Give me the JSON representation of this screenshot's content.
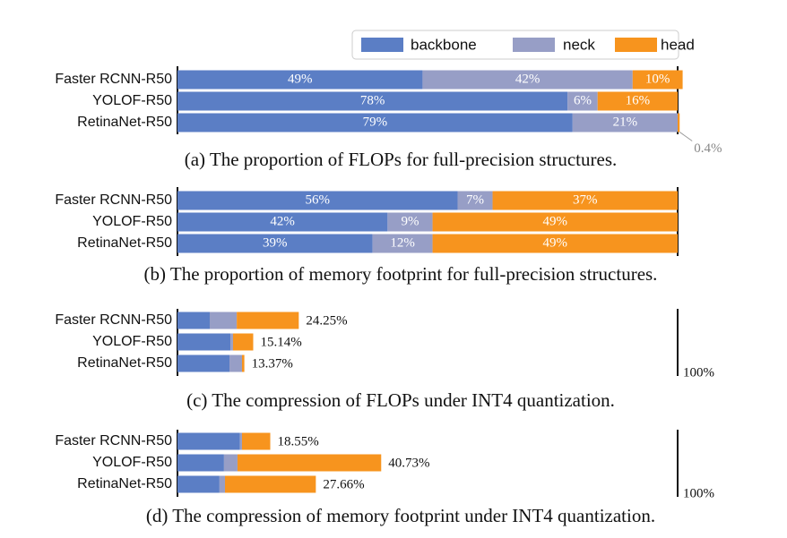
{
  "chart_data": [
    {
      "type": "bar",
      "orientation": "horizontal",
      "stacked": true,
      "caption": "(a) The proportion of FLOPs for full-precision structures.",
      "categories": [
        "Faster RCNN-R50",
        "YOLOF-R50",
        "RetinaNet-R50"
      ],
      "xlim": [
        0,
        100
      ],
      "series": [
        {
          "name": "backbone",
          "color": "#5b7ec5",
          "values": [
            49,
            78,
            79
          ],
          "value_labels": [
            "49%",
            "78%",
            "79%"
          ]
        },
        {
          "name": "neck",
          "color": "#979ec6",
          "values": [
            42,
            6,
            21
          ],
          "value_labels": [
            "42%",
            "6%",
            "21%"
          ]
        },
        {
          "name": "head",
          "color": "#f7941e",
          "values": [
            10,
            16,
            0.4
          ],
          "value_labels": [
            "10%",
            "16%",
            "0.4%"
          ]
        }
      ]
    },
    {
      "type": "bar",
      "orientation": "horizontal",
      "stacked": true,
      "caption": "(b) The proportion of memory footprint for full-precision structures.",
      "categories": [
        "Faster RCNN-R50",
        "YOLOF-R50",
        "RetinaNet-R50"
      ],
      "xlim": [
        0,
        100
      ],
      "series": [
        {
          "color": "#5b7ec5",
          "values": [
            56,
            42,
            39
          ],
          "value_labels": [
            "56%",
            "42%",
            "39%"
          ]
        },
        {
          "color": "#979ec6",
          "values": [
            7,
            9,
            12
          ],
          "value_labels": [
            "7%",
            "9%",
            "12%"
          ]
        },
        {
          "color": "#f7941e",
          "values": [
            37,
            49,
            49
          ],
          "value_labels": [
            "37%",
            "49%",
            "49%"
          ]
        }
      ]
    },
    {
      "type": "bar",
      "orientation": "horizontal",
      "stacked": true,
      "caption": "(c) The compression of FLOPs under INT4 quantization.",
      "categories": [
        "Faster RCNN-R50",
        "YOLOF-R50",
        "RetinaNet-R50"
      ],
      "xlim": [
        0,
        100
      ],
      "series": [
        {
          "color": "#5b7ec5",
          "values": [
            6.45,
            10.6,
            10.4
          ]
        },
        {
          "color": "#979ec6",
          "values": [
            5.4,
            0.5,
            2.5
          ]
        },
        {
          "color": "#f7941e",
          "values": [
            12.4,
            4.04,
            0.47
          ]
        }
      ],
      "totals": [
        24.25,
        15.14,
        13.37
      ],
      "total_labels": [
        "24.25%",
        "15.14%",
        "13.37%"
      ],
      "reference_line": {
        "value": 100,
        "label": "100%"
      }
    },
    {
      "type": "bar",
      "orientation": "horizontal",
      "stacked": true,
      "caption": "(d) The compression of memory footprint under INT4 quantization.",
      "categories": [
        "Faster RCNN-R50",
        "YOLOF-R50",
        "RetinaNet-R50"
      ],
      "xlim": [
        0,
        100
      ],
      "series": [
        {
          "color": "#5b7ec5",
          "values": [
            12.5,
            9.3,
            8.4
          ]
        },
        {
          "color": "#979ec6",
          "values": [
            0.4,
            2.7,
            1.1
          ]
        },
        {
          "color": "#f7941e",
          "values": [
            5.65,
            28.73,
            18.16
          ]
        }
      ],
      "totals": [
        18.55,
        40.73,
        27.66
      ],
      "total_labels": [
        "18.55%",
        "40.73%",
        "27.66%"
      ],
      "reference_line": {
        "value": 100,
        "label": "100%"
      }
    }
  ]
}
